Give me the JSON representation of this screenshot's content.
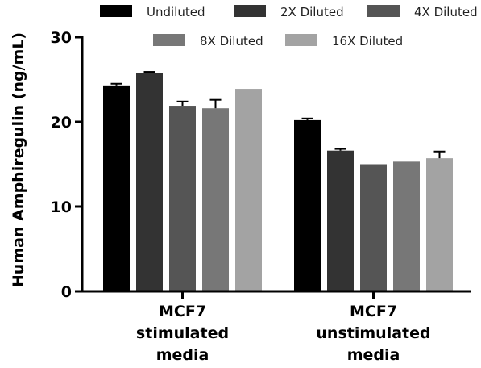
{
  "chart_data": {
    "type": "bar",
    "title": "",
    "xlabel": "",
    "ylabel": "Human Amphiregulin (ng/mL)",
    "ylim": [
      0,
      30
    ],
    "yticks": [
      0,
      10,
      20,
      30
    ],
    "categories": [
      [
        "MCF7",
        "stimulated",
        "media"
      ],
      [
        "MCF7",
        "unstimulated",
        "media"
      ]
    ],
    "legend_position": "top",
    "series": [
      {
        "name": "Undiluted",
        "color": "#000000",
        "values": [
          24.3,
          20.2
        ],
        "errors": [
          0.2,
          0.2
        ]
      },
      {
        "name": "2X Diluted",
        "color": "#333333",
        "values": [
          25.8,
          16.6
        ],
        "errors": [
          0.1,
          0.2
        ]
      },
      {
        "name": "4X Diluted",
        "color": "#555555",
        "values": [
          21.9,
          15.0
        ],
        "errors": [
          0.5,
          0.0
        ]
      },
      {
        "name": "8X Diluted",
        "color": "#777777",
        "values": [
          21.6,
          15.3
        ],
        "errors": [
          1.0,
          0.0
        ]
      },
      {
        "name": "16X Diluted",
        "color": "#a3a3a3",
        "values": [
          23.9,
          15.7
        ],
        "errors": [
          0.0,
          0.8
        ]
      }
    ]
  }
}
